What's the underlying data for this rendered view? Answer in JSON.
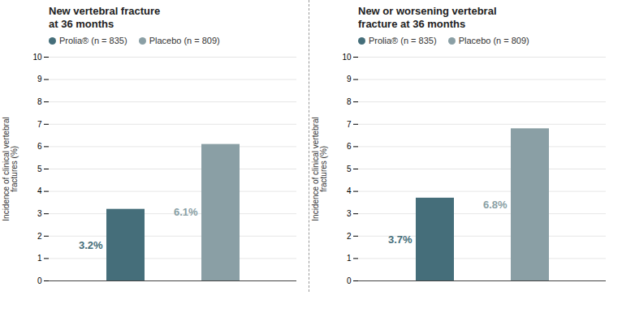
{
  "chart_data": [
    {
      "type": "bar",
      "title": "New vertebral fracture\nat 36 months",
      "categories": [
        "Prolia® (n = 835)",
        "Placebo (n = 809)"
      ],
      "values": [
        3.2,
        6.1
      ],
      "value_labels": [
        "3.2%",
        "6.1%"
      ],
      "data_labels": true,
      "colors": [
        "#456e7a",
        "#8a9fa5"
      ],
      "ylabel": "Incidence of clinical vertebral\nfractures (%)",
      "ylim": [
        0,
        10
      ],
      "yticks": [
        0,
        1,
        2,
        3,
        4,
        5,
        6,
        7,
        8,
        9,
        10
      ],
      "grid": true,
      "legend": "upper left",
      "tick_labels": "y"
    },
    {
      "type": "bar",
      "title": "New or worsening vertebral\nfracture at 36 months",
      "categories": [
        "Prolia® (n = 835)",
        "Placebo (n = 809)"
      ],
      "values": [
        3.7,
        6.8
      ],
      "value_labels": [
        "3.7%",
        "6.8%"
      ],
      "data_labels": true,
      "colors": [
        "#456e7a",
        "#8a9fa5"
      ],
      "ylabel": "Incidence of clinical vertebral\nfractures (%)",
      "ylim": [
        0,
        10
      ],
      "yticks": [
        0,
        1,
        2,
        3,
        4,
        5,
        6,
        7,
        8,
        9,
        10
      ],
      "grid": true,
      "legend": "upper left",
      "tick_labels": "y"
    }
  ]
}
